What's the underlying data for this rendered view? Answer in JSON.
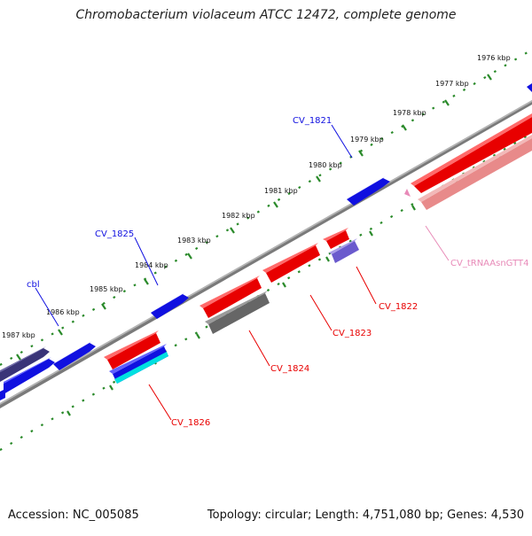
{
  "title": "Chromobacterium violaceum ATCC 12472, complete genome",
  "footer": {
    "accession": "Accession: NC_005085",
    "summary": "Topology: circular; Length: 4,751,080 bp; Genes: 4,530"
  },
  "colors": {
    "forward_gene": "#1010e0",
    "forward_gene_dark": "#3a3478",
    "reverse_gene": "#e80000",
    "reverse_gene_pale": "#e88a8a",
    "gray_gene": "#666666",
    "trna_label": "#e88ab8",
    "violet_gene": "#6a5acd",
    "cyan_gene": "#00e0e0",
    "backbone": "#808080",
    "ticks": "#2a8a2a"
  },
  "scale_labels": [
    "1976 kbp",
    "1977 kbp",
    "1978 kbp",
    "1979 kbp",
    "1980 kbp",
    "1981 kbp",
    "1982 kbp",
    "1983 kbp",
    "1984 kbp",
    "1985 kbp",
    "1986 kbp",
    "1987 kbp"
  ],
  "gene_labels": {
    "forward": [
      "CV_1821",
      "CV_1825",
      "cbl"
    ],
    "reverse": [
      "CV_1822",
      "CV_1823",
      "CV_1824",
      "CV_1826"
    ],
    "trna": "CV_tRNAAsnGTT4"
  }
}
